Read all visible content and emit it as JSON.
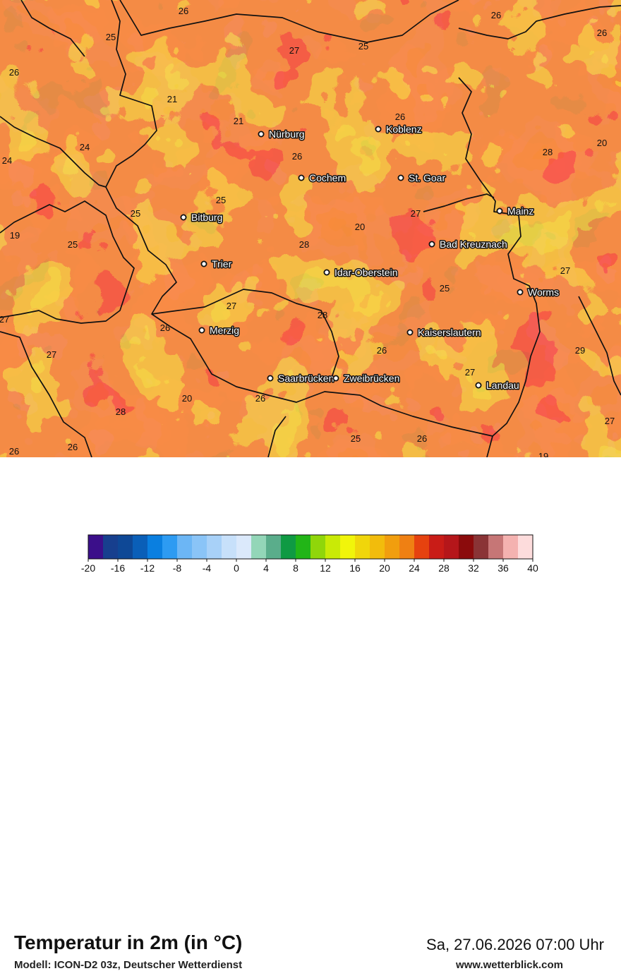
{
  "map": {
    "cities": [
      {
        "name": "Nürburg",
        "icon": "city-dot-icon"
      },
      {
        "name": "Koblenz",
        "icon": "city-dot-icon"
      },
      {
        "name": "Cochem",
        "icon": "city-dot-icon"
      },
      {
        "name": "St. Goar",
        "icon": "city-dot-icon"
      },
      {
        "name": "Mainz",
        "icon": "city-dot-icon"
      },
      {
        "name": "Bitburg",
        "icon": "city-dot-icon"
      },
      {
        "name": "Bad Kreuznach",
        "icon": "city-dot-icon"
      },
      {
        "name": "Trier",
        "icon": "city-dot-icon"
      },
      {
        "name": "Idar-Oberstein",
        "icon": "city-dot-icon"
      },
      {
        "name": "Worms",
        "icon": "city-dot-icon"
      },
      {
        "name": "Merzig",
        "icon": "city-dot-icon"
      },
      {
        "name": "Kaiserslautern",
        "icon": "city-dot-icon"
      },
      {
        "name": "Saarbrücken",
        "icon": "city-dot-icon"
      },
      {
        "name": "Zweibrücken",
        "icon": "city-dot-icon"
      },
      {
        "name": "Landau",
        "icon": "city-dot-icon"
      }
    ],
    "values": [
      "26",
      "25",
      "27",
      "25",
      "26",
      "26",
      "26",
      "21",
      "21",
      "26",
      "24",
      "24",
      "28",
      "20",
      "26",
      "25",
      "25",
      "19",
      "27",
      "25",
      "20",
      "28",
      "25",
      "27",
      "27",
      "28",
      "27",
      "26",
      "27",
      "26",
      "29",
      "27",
      "28",
      "20",
      "26",
      "26",
      "26",
      "25",
      "26",
      "27",
      "19"
    ]
  },
  "footer": {
    "title": "Temperatur in 2m (in °C)",
    "model": "Modell: ICON-D2 03z, Deutscher Wetterdienst",
    "datetime": "Sa, 27.06.2026 07:00 Uhr",
    "website": "www.wetterblick.com"
  },
  "legend": {
    "ticks": [
      "-20",
      "-16",
      "-12",
      "-8",
      "-4",
      "0",
      "4",
      "8",
      "12",
      "16",
      "20",
      "24",
      "28",
      "32",
      "36",
      "40"
    ],
    "colors": [
      "#3b0f8a",
      "#173f8e",
      "#0e4896",
      "#0a5fb8",
      "#0a7fe0",
      "#2d9bf2",
      "#6cb6f5",
      "#8ac4f7",
      "#a8d1f8",
      "#c7e0fa",
      "#dbe9fb",
      "#93d6b8",
      "#5aad8b",
      "#0f9a43",
      "#22b517",
      "#90d60a",
      "#c9ea06",
      "#f1f50a",
      "#f0d60b",
      "#f2bc0c",
      "#f19e0e",
      "#ef8013",
      "#e6420f",
      "#c91c17",
      "#b5161a",
      "#8b0b0c",
      "#8a3436",
      "#c67676",
      "#f4b2b0",
      "#fddcdc"
    ]
  },
  "colors": {
    "temp_20": "#f2bc0c",
    "temp_22": "#f19e0e",
    "temp_24": "#ef8013",
    "temp_26": "#e6420f",
    "temp_28": "#c91c17"
  }
}
